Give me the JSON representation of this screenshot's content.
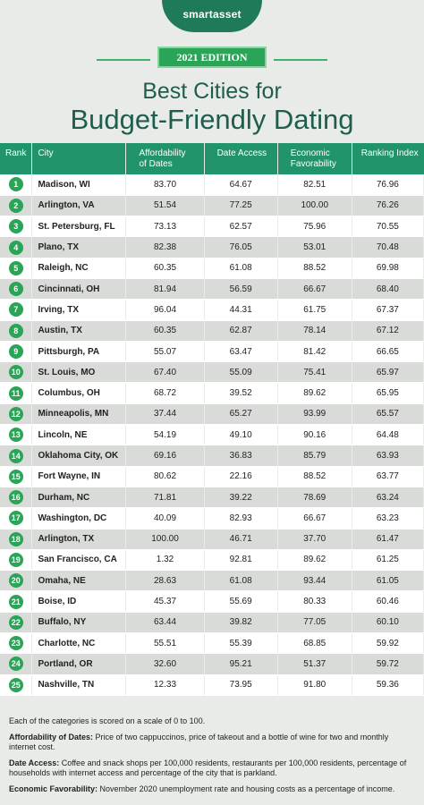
{
  "brand": {
    "logo": "smartasset",
    "edition": "2021 EDITION"
  },
  "title": {
    "line1": "Best Cities for",
    "line2": "Budget-Friendly Dating"
  },
  "columns": [
    "Rank",
    "City",
    "Affordability of Dates",
    "Date Access",
    "Economic Favorability",
    "Ranking Index"
  ],
  "rows": [
    {
      "rank": "1",
      "city": "Madison, WI",
      "afford": "83.70",
      "access": "64.67",
      "econ": "82.51",
      "index": "76.96"
    },
    {
      "rank": "2",
      "city": "Arlington, VA",
      "afford": "51.54",
      "access": "77.25",
      "econ": "100.00",
      "index": "76.26"
    },
    {
      "rank": "3",
      "city": "St. Petersburg, FL",
      "afford": "73.13",
      "access": "62.57",
      "econ": "75.96",
      "index": "70.55"
    },
    {
      "rank": "4",
      "city": "Plano, TX",
      "afford": "82.38",
      "access": "76.05",
      "econ": "53.01",
      "index": "70.48"
    },
    {
      "rank": "5",
      "city": "Raleigh, NC",
      "afford": "60.35",
      "access": "61.08",
      "econ": "88.52",
      "index": "69.98"
    },
    {
      "rank": "6",
      "city": "Cincinnati, OH",
      "afford": "81.94",
      "access": "56.59",
      "econ": "66.67",
      "index": "68.40"
    },
    {
      "rank": "7",
      "city": "Irving, TX",
      "afford": "96.04",
      "access": "44.31",
      "econ": "61.75",
      "index": "67.37"
    },
    {
      "rank": "8",
      "city": "Austin, TX",
      "afford": "60.35",
      "access": "62.87",
      "econ": "78.14",
      "index": "67.12"
    },
    {
      "rank": "9",
      "city": "Pittsburgh, PA",
      "afford": "55.07",
      "access": "63.47",
      "econ": "81.42",
      "index": "66.65"
    },
    {
      "rank": "10",
      "city": "St. Louis, MO",
      "afford": "67.40",
      "access": "55.09",
      "econ": "75.41",
      "index": "65.97"
    },
    {
      "rank": "11",
      "city": "Columbus, OH",
      "afford": "68.72",
      "access": "39.52",
      "econ": "89.62",
      "index": "65.95"
    },
    {
      "rank": "12",
      "city": "Minneapolis, MN",
      "afford": "37.44",
      "access": "65.27",
      "econ": "93.99",
      "index": "65.57"
    },
    {
      "rank": "13",
      "city": "Lincoln, NE",
      "afford": "54.19",
      "access": "49.10",
      "econ": "90.16",
      "index": "64.48"
    },
    {
      "rank": "14",
      "city": "Oklahoma City, OK",
      "afford": "69.16",
      "access": "36.83",
      "econ": "85.79",
      "index": "63.93"
    },
    {
      "rank": "15",
      "city": "Fort Wayne, IN",
      "afford": "80.62",
      "access": "22.16",
      "econ": "88.52",
      "index": "63.77"
    },
    {
      "rank": "16",
      "city": "Durham, NC",
      "afford": "71.81",
      "access": "39.22",
      "econ": "78.69",
      "index": "63.24"
    },
    {
      "rank": "17",
      "city": "Washington, DC",
      "afford": "40.09",
      "access": "82.93",
      "econ": "66.67",
      "index": "63.23"
    },
    {
      "rank": "18",
      "city": "Arlington, TX",
      "afford": "100.00",
      "access": "46.71",
      "econ": "37.70",
      "index": "61.47"
    },
    {
      "rank": "19",
      "city": "San Francisco, CA",
      "afford": "1.32",
      "access": "92.81",
      "econ": "89.62",
      "index": "61.25"
    },
    {
      "rank": "20",
      "city": "Omaha, NE",
      "afford": "28.63",
      "access": "61.08",
      "econ": "93.44",
      "index": "61.05"
    },
    {
      "rank": "21",
      "city": "Boise, ID",
      "afford": "45.37",
      "access": "55.69",
      "econ": "80.33",
      "index": "60.46"
    },
    {
      "rank": "22",
      "city": "Buffalo, NY",
      "afford": "63.44",
      "access": "39.82",
      "econ": "77.05",
      "index": "60.10"
    },
    {
      "rank": "23",
      "city": "Charlotte, NC",
      "afford": "55.51",
      "access": "55.39",
      "econ": "68.85",
      "index": "59.92"
    },
    {
      "rank": "24",
      "city": "Portland, OR",
      "afford": "32.60",
      "access": "95.21",
      "econ": "51.37",
      "index": "59.72"
    },
    {
      "rank": "25",
      "city": "Nashville, TN",
      "afford": "12.33",
      "access": "73.95",
      "econ": "91.80",
      "index": "59.36"
    }
  ],
  "footer": {
    "note": "Each of the categories is scored on a scale of 0 to 100.",
    "afford_label": "Affordability of Dates:",
    "afford_text": "Price of two cappuccinos, price of takeout and a bottle of wine for two and monthly internet cost.",
    "access_label": "Date Access:",
    "access_text": "Coffee and snack shops per 100,000 residents, restaurants per 100,000 residents, percentage of households with internet access and percentage of the city that is parkland.",
    "econ_label": "Economic Favorability:",
    "econ_text": "November 2020 unemployment rate and housing costs as a percentage of income."
  },
  "colors": {
    "header_green": "#22946b",
    "badge_green": "#2aa457",
    "title_green": "#1f5d4f"
  }
}
